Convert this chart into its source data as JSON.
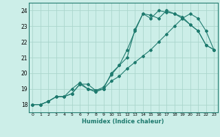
{
  "xlabel": "Humidex (Indice chaleur)",
  "xlim": [
    -0.5,
    23.5
  ],
  "ylim": [
    17.5,
    24.5
  ],
  "yticks": [
    18,
    19,
    20,
    21,
    22,
    23,
    24
  ],
  "xticks": [
    0,
    1,
    2,
    3,
    4,
    5,
    6,
    7,
    8,
    9,
    10,
    11,
    12,
    13,
    14,
    15,
    16,
    17,
    18,
    19,
    20,
    21,
    22,
    23
  ],
  "bg_color": "#cceee8",
  "grid_color": "#aad6cc",
  "line_color": "#1e7a6e",
  "line1_x": [
    0,
    1,
    2,
    3,
    4,
    5,
    6,
    7,
    8,
    9,
    10,
    11,
    12,
    13,
    14,
    15,
    16,
    17,
    18,
    19,
    20,
    21,
    22,
    23
  ],
  "line1_y": [
    18.0,
    18.0,
    18.2,
    18.5,
    18.5,
    18.7,
    19.3,
    19.3,
    18.9,
    19.0,
    19.5,
    19.8,
    20.3,
    20.7,
    21.1,
    21.5,
    22.0,
    22.5,
    23.0,
    23.5,
    23.8,
    23.5,
    22.7,
    21.5
  ],
  "line2_x": [
    0,
    1,
    2,
    3,
    4,
    5,
    6,
    7,
    8,
    9,
    10,
    11,
    12,
    13,
    14,
    15,
    16,
    17,
    18,
    19,
    20,
    21,
    22,
    23
  ],
  "line2_y": [
    18.0,
    18.0,
    18.2,
    18.5,
    18.5,
    18.7,
    19.3,
    19.0,
    18.9,
    19.1,
    19.9,
    20.5,
    21.5,
    22.7,
    23.8,
    23.7,
    23.5,
    24.0,
    23.8,
    23.6,
    23.1,
    22.7,
    21.8,
    21.5
  ],
  "line3_x": [
    0,
    1,
    2,
    3,
    4,
    5,
    6,
    7,
    8,
    9,
    10,
    11,
    12,
    13,
    14,
    15,
    16,
    17,
    18,
    19,
    20,
    21,
    22,
    23
  ],
  "line3_y": [
    18.0,
    18.0,
    18.2,
    18.5,
    18.5,
    19.0,
    19.4,
    19.0,
    18.8,
    19.0,
    20.0,
    20.5,
    21.0,
    22.8,
    23.8,
    23.5,
    24.0,
    23.9,
    23.8,
    23.5,
    23.1,
    22.7,
    21.8,
    21.5
  ]
}
